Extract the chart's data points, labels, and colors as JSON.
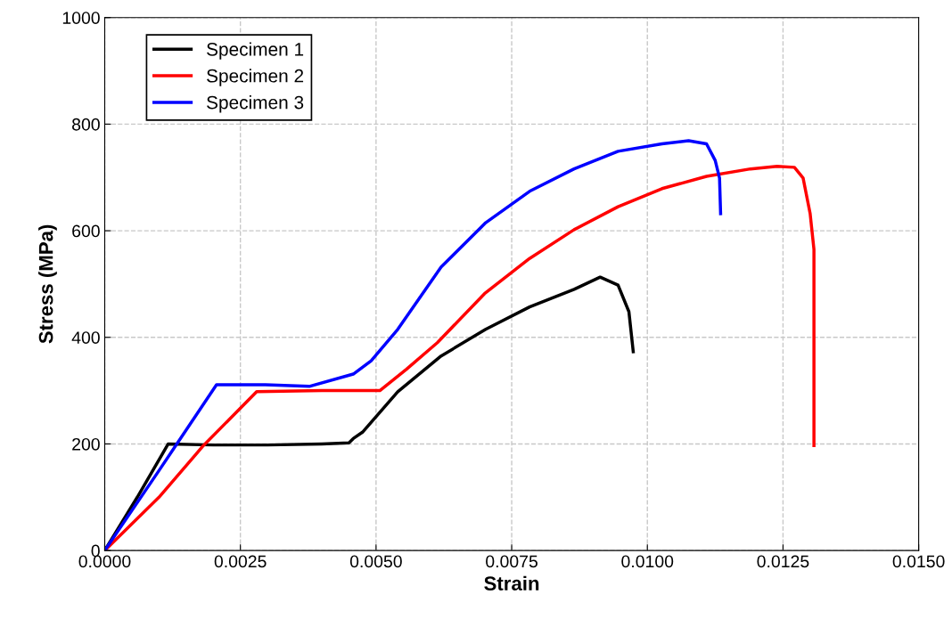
{
  "chart_data": {
    "type": "line",
    "xlabel": "Strain",
    "ylabel": "Stress (MPa)",
    "xlim": [
      0,
      0.015
    ],
    "xticks": [
      {
        "value": 0,
        "label": "0.0000"
      },
      {
        "value": 0.0025,
        "label": "0.0025"
      },
      {
        "value": 0.005,
        "label": "0.0050"
      },
      {
        "value": 0.0075,
        "label": "0.0075"
      },
      {
        "value": 0.01,
        "label": "0.0100"
      },
      {
        "value": 0.0125,
        "label": "0.0125"
      },
      {
        "value": 0.015,
        "label": "0.0150"
      }
    ],
    "ylim": [
      0,
      1000
    ],
    "yticks": [
      0,
      200,
      400,
      600,
      800,
      1000
    ],
    "grid": true,
    "legend": "top left",
    "line_style": "solid",
    "marker": "none",
    "series": [
      {
        "name": "Specimen 1",
        "color": "#000000",
        "x": [
          0,
          0.0006,
          0.00117,
          0.002,
          0.003,
          0.004,
          0.0045,
          0.00458,
          0.00475,
          0.0054,
          0.0062,
          0.00702,
          0.00783,
          0.00865,
          0.00913,
          0.00946,
          0.00966,
          0.00974
        ],
        "values": [
          0,
          100,
          200,
          198,
          198,
          200,
          202,
          210,
          222,
          298,
          365,
          415,
          457,
          490,
          513,
          498,
          448,
          373
        ]
      },
      {
        "name": "Specimen 2",
        "color": "#ff0000",
        "x": [
          0,
          0.001,
          0.00182,
          0.0028,
          0.004,
          0.00507,
          0.00556,
          0.00613,
          0.007,
          0.00783,
          0.00865,
          0.00946,
          0.01027,
          0.01109,
          0.0119,
          0.01239,
          0.01271,
          0.01287,
          0.013,
          0.01307,
          0.01307
        ],
        "values": [
          0,
          100,
          197,
          298,
          300,
          300,
          340,
          390,
          482,
          548,
          602,
          645,
          679,
          702,
          716,
          721,
          719,
          699,
          632,
          565,
          197
        ]
      },
      {
        "name": "Specimen 3",
        "color": "#0000ff",
        "x": [
          0,
          0.001,
          0.00206,
          0.00296,
          0.00377,
          0.00458,
          0.00491,
          0.0054,
          0.0062,
          0.00702,
          0.00783,
          0.00865,
          0.00946,
          0.01027,
          0.01076,
          0.01109,
          0.01125,
          0.01133,
          0.01135
        ],
        "values": [
          0,
          150,
          311,
          311,
          308,
          331,
          356,
          415,
          532,
          615,
          674,
          716,
          749,
          763,
          769,
          763,
          732,
          699,
          632
        ]
      }
    ]
  }
}
